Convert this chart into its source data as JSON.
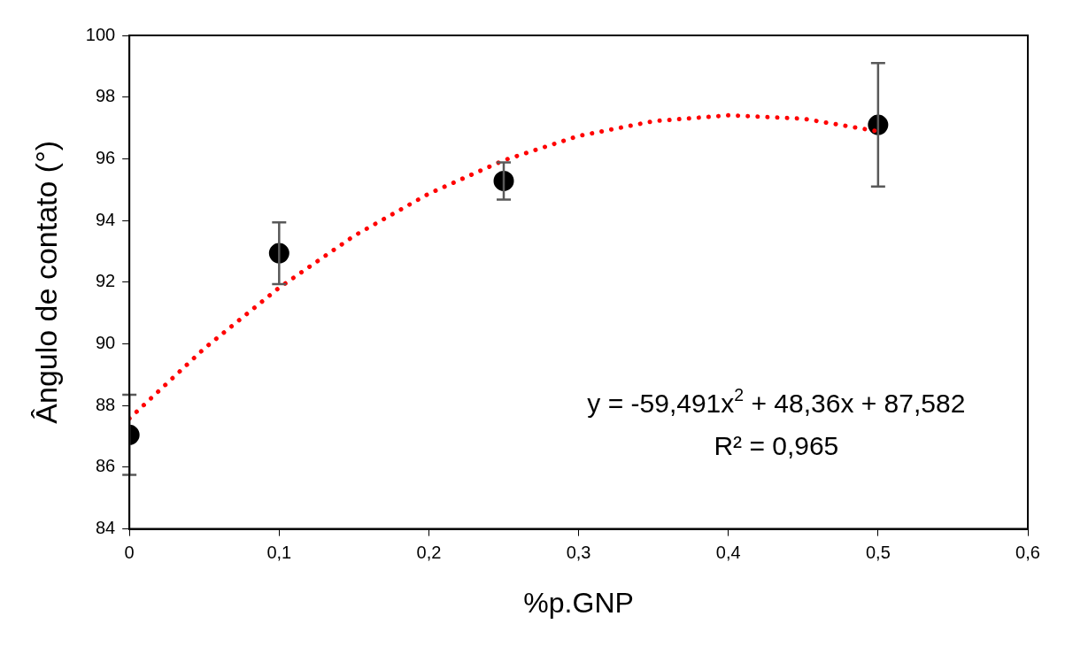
{
  "chart_data": {
    "type": "scatter",
    "xlabel": "%p.GNP",
    "ylabel": "Ângulo de contato (°)",
    "xlim": [
      0,
      0.6
    ],
    "xticks": [
      0,
      {
        "value": 0.1,
        "label": "0,1"
      },
      {
        "value": 0.2,
        "label": "0,2"
      },
      {
        "value": 0.3,
        "label": "0,3"
      },
      {
        "value": 0.4,
        "label": "0,4"
      },
      {
        "value": 0.5,
        "label": "0,5"
      },
      {
        "value": 0.6,
        "label": "0,6"
      }
    ],
    "ylim": [
      84,
      100
    ],
    "yticks": [
      84,
      86,
      88,
      90,
      92,
      94,
      96,
      98,
      100
    ],
    "grid": false,
    "legend": false,
    "series": [
      {
        "type": "line",
        "color": "#ff0000",
        "marker": "none",
        "line_style": "dotted",
        "x": [
          0,
          0.05,
          0.1,
          0.15,
          0.2,
          0.25,
          0.3,
          0.35,
          0.4,
          0.45,
          0.5
        ],
        "values": [
          87.58,
          89.85,
          91.82,
          93.5,
          94.87,
          95.95,
          96.74,
          97.22,
          97.41,
          97.3,
          96.89
        ]
      },
      {
        "color": "#000000",
        "marker": "circle",
        "x": [
          0,
          0.1,
          0.25,
          0.5
        ],
        "values": [
          87.05,
          92.94,
          95.28,
          97.1
        ],
        "errors": [
          1.3,
          1.0,
          0.6,
          2.0
        ]
      }
    ],
    "annotations": [
      "y = -59,491x$^{2}$ + 48,36x + 87,582",
      "R² = 0,965"
    ]
  }
}
